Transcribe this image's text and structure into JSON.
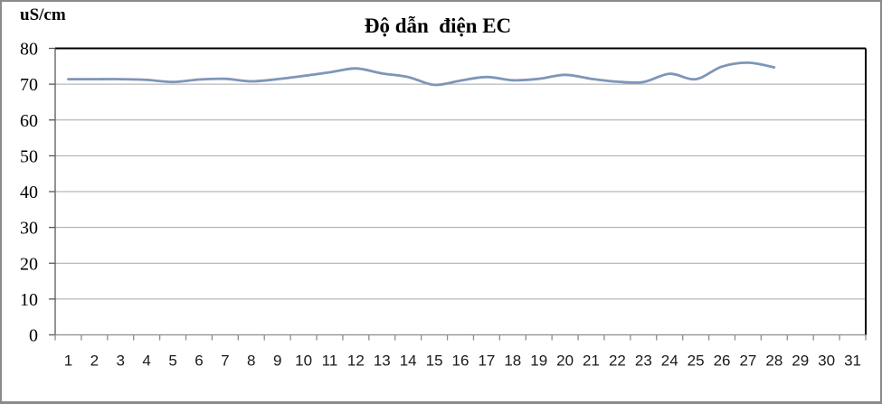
{
  "chart_data": {
    "type": "line",
    "title": "Độ dẫn  điện EC",
    "ylabel": "uS/cm",
    "x_labels": [
      "1",
      "2",
      "3",
      "4",
      "5",
      "6",
      "7",
      "8",
      "9",
      "10",
      "11",
      "12",
      "13",
      "14",
      "15",
      "16",
      "17",
      "18",
      "19",
      "20",
      "21",
      "22",
      "23",
      "24",
      "25",
      "26",
      "27",
      "28",
      "29",
      "30",
      "31"
    ],
    "series": [
      {
        "name": "EC",
        "values": [
          71.4,
          71.4,
          71.4,
          71.2,
          70.6,
          71.3,
          71.5,
          70.8,
          71.4,
          72.3,
          73.3,
          74.4,
          73.0,
          72.0,
          69.8,
          71.0,
          72.0,
          71.1,
          71.5,
          72.6,
          71.5,
          70.7,
          70.6,
          72.9,
          71.4,
          74.9,
          76.0,
          74.7
        ]
      }
    ],
    "ylim": [
      0,
      80
    ],
    "ytick_step": 10,
    "grid": true,
    "legend": "none",
    "smoothed": true,
    "colors": {
      "line": "#7E96B8",
      "gridline": "#A6A6A6",
      "y_axis": "#595959",
      "x_axis": "#8C8C8C",
      "plot_border": "#000000",
      "outer_frame": "#8A8A8A",
      "text": "#000000"
    }
  }
}
